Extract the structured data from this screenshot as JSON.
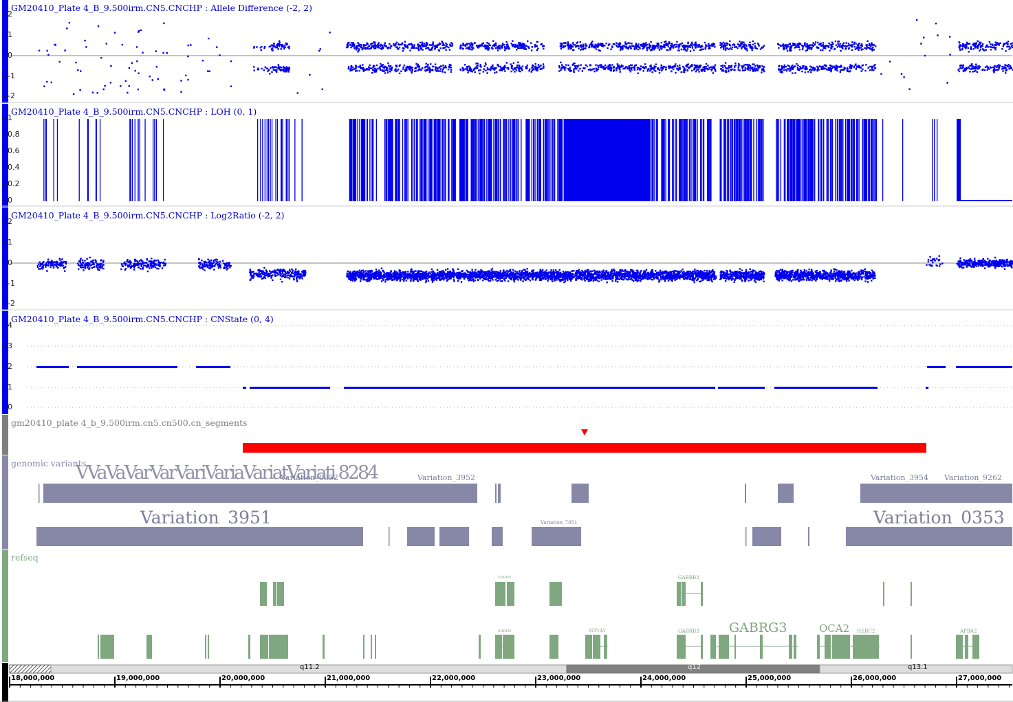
{
  "tracks": {
    "allele_difference": {
      "label": "GM20410_Plate 4_B_9.500irm.CN5.CNCHP : Allele Difference (-2, 2)",
      "ticks": [
        "2",
        "1",
        "0",
        "-1",
        "-2"
      ],
      "color": "#0000ee"
    },
    "loh": {
      "label": "GM20410_Plate 4_B_9.500irm.CN5.CNCHP : LOH (0, 1)",
      "ticks": [
        "1",
        "0.8",
        "0.6",
        "0.4",
        "0.2",
        "0"
      ],
      "color": "#0000ee"
    },
    "log2ratio": {
      "label": "GM20410_Plate 4_B_9.500irm.CN5.CNCHP : Log2Ratio (-2, 2)",
      "ticks": [
        "2",
        "1",
        "0",
        "-1",
        "-2"
      ],
      "color": "#0000ee"
    },
    "cnstate": {
      "label": "GM20410_Plate 4_B_9.500irm.CN5.CNCHP : CNState (0, 4)",
      "ticks": [
        "4",
        "3",
        "2",
        "1",
        "0"
      ],
      "color": "#0000ee"
    },
    "cn_segments": {
      "label": "gm20410_plate 4_b_9.500irm.cn5.cn500.cn_segments",
      "color": "#ff0000"
    },
    "genomic_variants": {
      "label": "genomic variants",
      "color": "#8788a8",
      "labels": {
        "overlap": "VVaVaVarVarVariVariaVariatVariati 8284",
        "v0352": "Variation_0352",
        "v3952": "Variation_3952",
        "v3954": "Variation_3954",
        "v9262": "Variation_9262",
        "v3951": "Variation_3951",
        "v7051": "Variation_7051",
        "v0353": "Variation_0353"
      }
    },
    "refseq": {
      "label": "refseq",
      "color": "#80a880",
      "genes": {
        "snrpn": "SNRPN",
        "gabrb3": "GABRB3",
        "atp10a": "ATP10A",
        "gabrg3": "GABRG3",
        "oca2": "OCA2",
        "herc2": "HERC2",
        "apba2": "APBA2"
      }
    }
  },
  "ideogram": {
    "bands": [
      "q11.2",
      "q12",
      "q13.1"
    ]
  },
  "ruler": {
    "positions": [
      "18,000,000",
      "19,000,000",
      "20,000,000",
      "21,000,000",
      "22,000,000",
      "23,000,000",
      "24,000,000",
      "25,000,000",
      "26,000,000",
      "27,000,000"
    ]
  }
}
